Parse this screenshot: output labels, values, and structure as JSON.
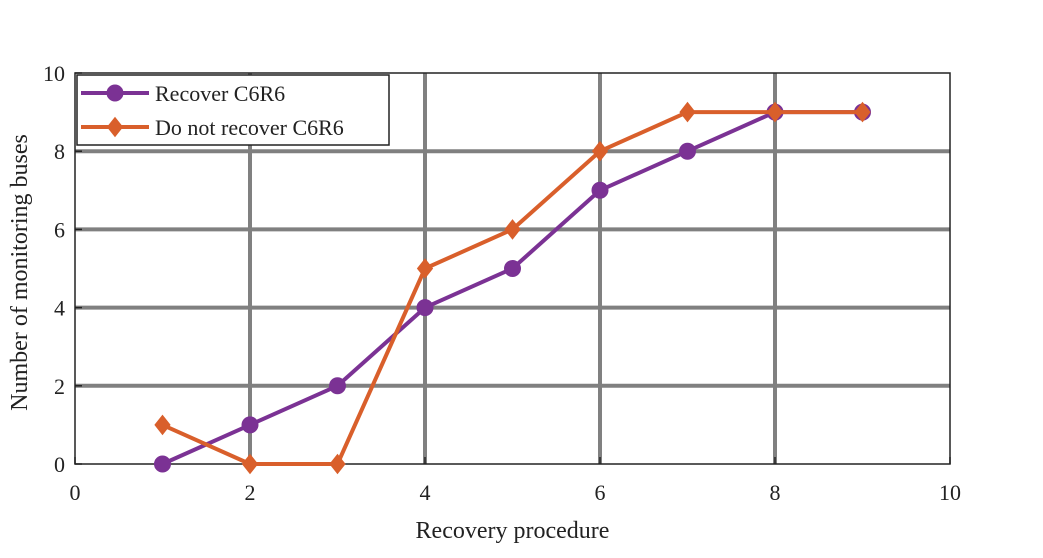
{
  "chart_data": {
    "type": "line",
    "xlabel": "Recovery procedure",
    "ylabel": "Number of monitoring buses",
    "xlim": [
      0,
      10
    ],
    "ylim": [
      0,
      10
    ],
    "xticks": [
      0,
      2,
      4,
      6,
      8,
      10
    ],
    "yticks": [
      0,
      2,
      4,
      6,
      8,
      10
    ],
    "grid": true,
    "legend_position": "top-left",
    "series": [
      {
        "name": "Recover C6R6",
        "marker": "circle",
        "color": "#7B3294",
        "x": [
          1,
          2,
          3,
          4,
          5,
          6,
          7,
          8,
          9
        ],
        "y": [
          0,
          1,
          2,
          4,
          5,
          7,
          8,
          9,
          9
        ]
      },
      {
        "name": "Do not recover C6R6",
        "marker": "diamond",
        "color": "#D95F2B",
        "x": [
          1,
          2,
          3,
          4,
          5,
          6,
          7,
          8,
          9
        ],
        "y": [
          1,
          0,
          0,
          5,
          6,
          8,
          9,
          9,
          9
        ]
      }
    ]
  }
}
